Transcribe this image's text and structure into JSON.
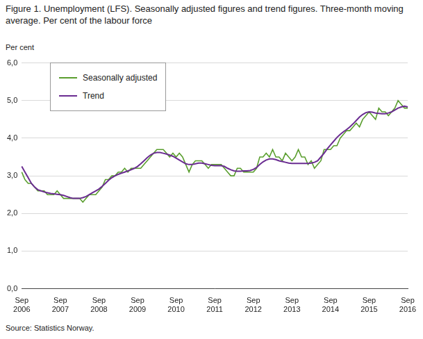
{
  "chart_data": {
    "type": "line",
    "title": "Figure 1. Unemployment (LFS). Seasonally adjusted figures and trend figures. Three-month moving average. Per cent of the labour force",
    "y_label": "Per cent",
    "source": "Source: Statistics Norway.",
    "categories": [
      "Sep 2006",
      null,
      null,
      null,
      null,
      null,
      null,
      null,
      null,
      null,
      null,
      null,
      "Sep 2007",
      null,
      null,
      null,
      null,
      null,
      null,
      null,
      null,
      null,
      null,
      null,
      "Sep 2008",
      null,
      null,
      null,
      null,
      null,
      null,
      null,
      null,
      null,
      null,
      null,
      "Sep 2009",
      null,
      null,
      null,
      null,
      null,
      null,
      null,
      null,
      null,
      null,
      null,
      "Sep 2010",
      null,
      null,
      null,
      null,
      null,
      null,
      null,
      null,
      null,
      null,
      null,
      "Sep 2011",
      null,
      null,
      null,
      null,
      null,
      null,
      null,
      null,
      null,
      null,
      null,
      "Sep 2012",
      null,
      null,
      null,
      null,
      null,
      null,
      null,
      null,
      null,
      null,
      null,
      "Sep 2013",
      null,
      null,
      null,
      null,
      null,
      null,
      null,
      null,
      null,
      null,
      null,
      "Sep 2014",
      null,
      null,
      null,
      null,
      null,
      null,
      null,
      null,
      null,
      null,
      null,
      "Sep 2015",
      null,
      null,
      null,
      null,
      null,
      null,
      null,
      null,
      null,
      null,
      null,
      "Sep 2016"
    ],
    "series": [
      {
        "name": "Seasonally adjusted",
        "color": "#5a9e2e",
        "values": [
          3.1,
          2.9,
          2.8,
          2.8,
          2.7,
          2.6,
          2.6,
          2.6,
          2.5,
          2.5,
          2.5,
          2.6,
          2.5,
          2.4,
          2.4,
          2.4,
          2.4,
          2.4,
          2.4,
          2.3,
          2.4,
          2.5,
          2.5,
          2.5,
          2.6,
          2.7,
          2.9,
          2.9,
          3.0,
          3.0,
          3.1,
          3.1,
          3.2,
          3.1,
          3.2,
          3.2,
          3.2,
          3.2,
          3.3,
          3.4,
          3.5,
          3.6,
          3.7,
          3.7,
          3.7,
          3.6,
          3.5,
          3.6,
          3.5,
          3.6,
          3.5,
          3.3,
          3.1,
          3.3,
          3.4,
          3.4,
          3.4,
          3.3,
          3.2,
          3.3,
          3.3,
          3.3,
          3.3,
          3.2,
          3.1,
          3.0,
          3.0,
          3.2,
          3.2,
          3.1,
          3.1,
          3.1,
          3.1,
          3.2,
          3.5,
          3.5,
          3.6,
          3.5,
          3.7,
          3.5,
          3.5,
          3.4,
          3.6,
          3.5,
          3.4,
          3.5,
          3.7,
          3.5,
          3.5,
          3.3,
          3.4,
          3.2,
          3.3,
          3.4,
          3.7,
          3.7,
          3.7,
          3.8,
          3.8,
          4.0,
          4.1,
          4.2,
          4.2,
          4.3,
          4.4,
          4.3,
          4.5,
          4.6,
          4.7,
          4.6,
          4.5,
          4.8,
          4.7,
          4.7,
          4.6,
          4.7,
          4.8,
          5.0,
          4.9,
          4.8,
          4.8
        ]
      },
      {
        "name": "Trend",
        "color": "#6a2c91",
        "values": [
          3.25,
          3.1,
          2.95,
          2.8,
          2.7,
          2.63,
          2.6,
          2.57,
          2.55,
          2.53,
          2.52,
          2.51,
          2.5,
          2.48,
          2.45,
          2.42,
          2.4,
          2.4,
          2.4,
          2.42,
          2.45,
          2.5,
          2.55,
          2.6,
          2.65,
          2.72,
          2.8,
          2.88,
          2.95,
          3.0,
          3.04,
          3.07,
          3.1,
          3.13,
          3.16,
          3.2,
          3.25,
          3.32,
          3.4,
          3.48,
          3.55,
          3.6,
          3.62,
          3.62,
          3.6,
          3.58,
          3.55,
          3.52,
          3.47,
          3.42,
          3.37,
          3.32,
          3.3,
          3.3,
          3.32,
          3.34,
          3.34,
          3.32,
          3.3,
          3.28,
          3.27,
          3.27,
          3.27,
          3.25,
          3.2,
          3.16,
          3.13,
          3.12,
          3.12,
          3.13,
          3.13,
          3.14,
          3.17,
          3.22,
          3.3,
          3.37,
          3.42,
          3.45,
          3.45,
          3.43,
          3.4,
          3.38,
          3.36,
          3.34,
          3.33,
          3.33,
          3.33,
          3.33,
          3.33,
          3.33,
          3.34,
          3.36,
          3.4,
          3.5,
          3.6,
          3.72,
          3.82,
          3.92,
          4.02,
          4.1,
          4.17,
          4.23,
          4.3,
          4.38,
          4.47,
          4.56,
          4.63,
          4.68,
          4.7,
          4.69,
          4.67,
          4.66,
          4.65,
          4.65,
          4.67,
          4.7,
          4.75,
          4.8,
          4.83,
          4.85,
          4.83
        ]
      }
    ],
    "ylim": [
      0,
      6
    ],
    "yticks": [
      {
        "value": 0,
        "label": "0,0"
      },
      {
        "value": 1,
        "label": "1,0"
      },
      {
        "value": 2,
        "label": "2,0"
      },
      {
        "value": 3,
        "label": "3,0"
      },
      {
        "value": 4,
        "label": "4,0"
      },
      {
        "value": 5,
        "label": "5,0"
      },
      {
        "value": 6,
        "label": "6,0"
      }
    ],
    "grid": true,
    "legend": "upper left"
  }
}
